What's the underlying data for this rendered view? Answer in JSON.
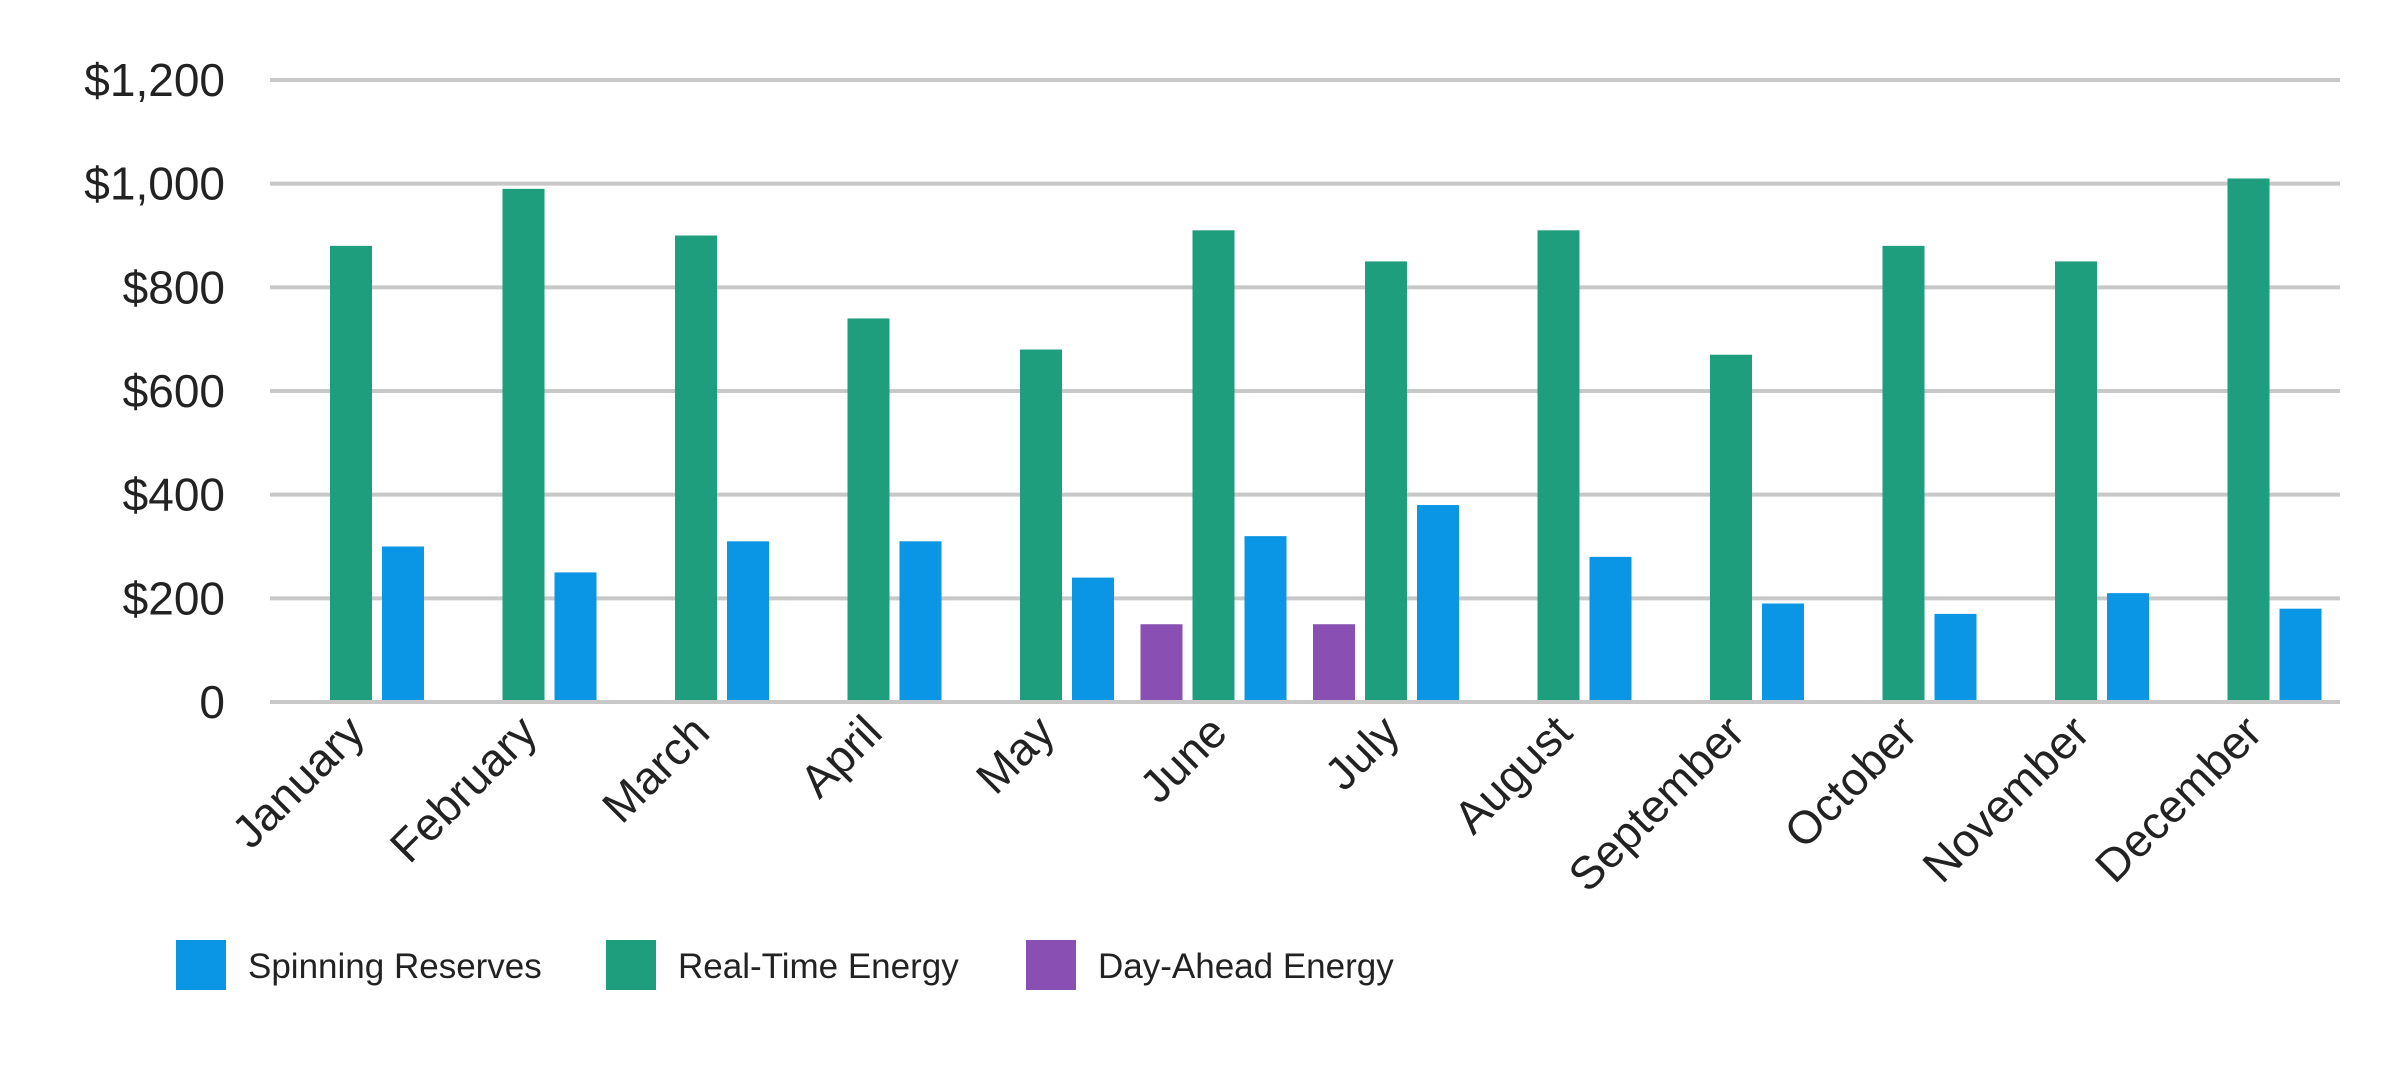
{
  "chart_data": {
    "type": "bar",
    "title": "",
    "xlabel": "",
    "ylabel": "",
    "ylim": [
      0,
      1200
    ],
    "yticks": [
      0,
      200,
      400,
      600,
      800,
      1000,
      1200
    ],
    "ytick_labels": [
      "0",
      "$200",
      "$400",
      "$600",
      "$800",
      "$1,000",
      "$1,200"
    ],
    "grid": true,
    "legend_position": "bottom-left",
    "categories": [
      "January",
      "February",
      "March",
      "April",
      "May",
      "June",
      "July",
      "August",
      "September",
      "October",
      "November",
      "December"
    ],
    "series": [
      {
        "name": "Day-Ahead Energy",
        "color": "#8a4fb3",
        "values": [
          null,
          null,
          null,
          null,
          null,
          150,
          150,
          null,
          null,
          null,
          null,
          null
        ]
      },
      {
        "name": "Real-Time Energy",
        "color": "#1f9e7d",
        "values": [
          880,
          990,
          900,
          740,
          680,
          910,
          850,
          910,
          670,
          880,
          850,
          1010
        ]
      },
      {
        "name": "Spinning Reserves",
        "color": "#0a95e5",
        "values": [
          300,
          250,
          310,
          310,
          240,
          320,
          380,
          280,
          190,
          170,
          210,
          180
        ]
      }
    ],
    "legend_order": [
      "Spinning Reserves",
      "Real-Time Energy",
      "Day-Ahead Energy"
    ]
  }
}
